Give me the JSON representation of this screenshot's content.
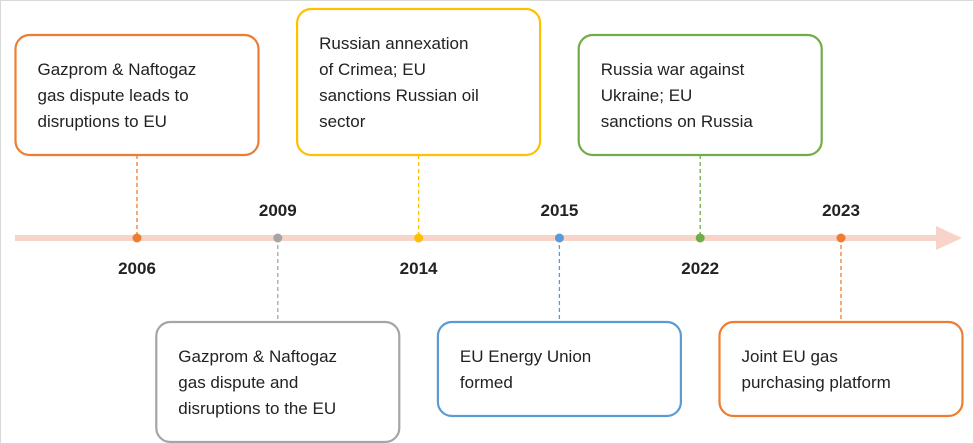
{
  "timeline": {
    "events": [
      {
        "year": "2006",
        "color": "#ed7d31",
        "lines": [
          "Gazprom & Naftogaz",
          "gas dispute leads to",
          "disruptions to EU"
        ]
      },
      {
        "year": "2009",
        "color": "#a5a5a5",
        "lines": [
          "Gazprom & Naftogaz",
          "gas dispute and",
          "disruptions to the EU"
        ]
      },
      {
        "year": "2014",
        "color": "#ffc000",
        "lines": [
          "Russian annexation",
          "of Crimea; EU",
          "sanctions Russian oil",
          "sector"
        ]
      },
      {
        "year": "2015",
        "color": "#5b9bd5",
        "lines": [
          "EU Energy Union",
          "formed"
        ]
      },
      {
        "year": "2022",
        "color": "#70ad47",
        "lines": [
          "Russia war against",
          "Ukraine; EU",
          "sanctions on Russia"
        ]
      },
      {
        "year": "2023",
        "color": "#ed7d31",
        "lines": [
          "Joint EU gas",
          "purchasing platform"
        ]
      }
    ]
  }
}
